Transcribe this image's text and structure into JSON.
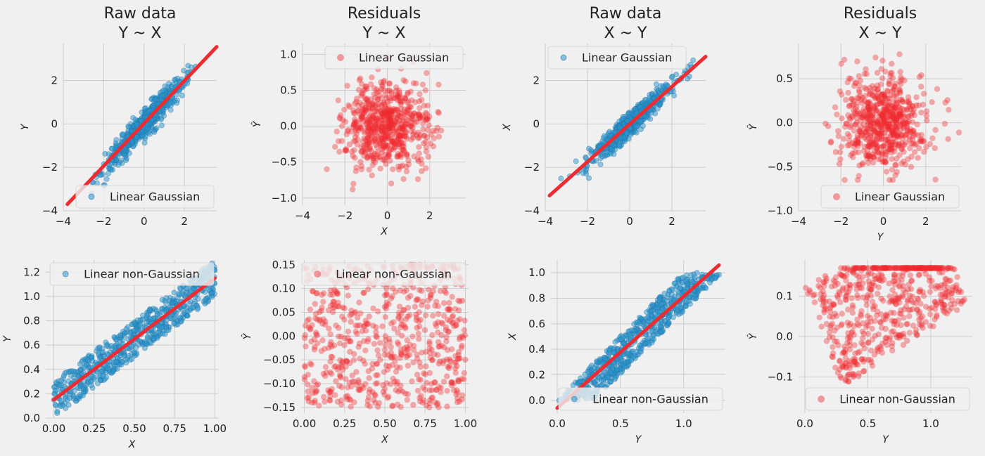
{
  "colors": {
    "blue": "#2a95d0",
    "red": "#ee2b30",
    "background": "#f0f0f0",
    "grid": "#cbcbcb"
  },
  "chart_data": [
    {
      "type": "scatter",
      "title": "Raw data\nY ~ X",
      "xlabel": "",
      "ylabel": "Y",
      "xlim": [
        -4,
        3.6
      ],
      "ylim": [
        -4,
        3.7
      ],
      "xticks": [
        -4,
        -2,
        0,
        2
      ],
      "xtick_labels": [
        "−4",
        "−2",
        "0",
        "2"
      ],
      "yticks": [
        -4,
        -2,
        0,
        2
      ],
      "ytick_labels": [
        "−4",
        "−2",
        "0",
        "2"
      ],
      "grid": true,
      "legend_position": "lower-right",
      "series": [
        {
          "name": "Linear Gaussian",
          "kind": "points",
          "color": "#2a95d0",
          "distribution": {
            "x": "normal",
            "count": 650,
            "slope": 1.0,
            "intercept": 0.0,
            "noise_sd": 0.3,
            "x_range": [
              -3.8,
              3.5
            ]
          }
        },
        {
          "kind": "fit-line",
          "color": "#ee2b30",
          "x": [
            -3.8,
            3.6
          ],
          "y": [
            -3.7,
            3.55
          ]
        }
      ]
    },
    {
      "type": "scatter",
      "title": "Residuals\nY ~ X",
      "xlabel": "X",
      "ylabel": "Ŷ",
      "xlim": [
        -4,
        3.7
      ],
      "ylim": [
        -1.1,
        1.15
      ],
      "xticks": [
        -4,
        -2,
        0,
        2
      ],
      "xtick_labels": [
        "−4",
        "−2",
        "0",
        "2"
      ],
      "yticks": [
        -1.0,
        -0.5,
        0.0,
        0.5,
        1.0
      ],
      "ytick_labels": [
        "−1.0",
        "−0.5",
        "0.0",
        "0.5",
        "1.0"
      ],
      "grid": true,
      "legend_position": "top-right",
      "series": [
        {
          "name": "Linear Gaussian",
          "kind": "points",
          "color": "#ee2b30",
          "distribution": {
            "x": "normal",
            "y": "normal",
            "count": 650,
            "x_sd": 1.0,
            "y_sd": 0.3,
            "x_range": [
              -3.8,
              3.6
            ],
            "y_range": [
              -1.0,
              1.0
            ]
          }
        }
      ]
    },
    {
      "type": "scatter",
      "title": "Raw data\nX ~ Y",
      "xlabel": "",
      "ylabel": "X",
      "xlim": [
        -4,
        3.6
      ],
      "ylim": [
        -4,
        3.7
      ],
      "xticks": [
        -4,
        -2,
        0,
        2
      ],
      "xtick_labels": [
        "−4",
        "−2",
        "0",
        "2"
      ],
      "yticks": [
        -4,
        -2,
        0,
        2
      ],
      "ytick_labels": [
        "−4",
        "−2",
        "0",
        "2"
      ],
      "grid": true,
      "legend_position": "top-left",
      "series": [
        {
          "name": "Linear Gaussian",
          "kind": "points",
          "color": "#2a95d0",
          "distribution": {
            "x": "normal",
            "count": 650,
            "slope": 1.0,
            "intercept": 0.0,
            "noise_sd": 0.3,
            "x_range": [
              -3.8,
              3.5
            ]
          }
        },
        {
          "kind": "fit-line",
          "color": "#ee2b30",
          "x": [
            -3.8,
            3.6
          ],
          "y": [
            -3.3,
            3.1
          ]
        }
      ]
    },
    {
      "type": "scatter",
      "title": "Residuals\nX ~ Y",
      "xlabel": "Y",
      "ylabel": "Ŷ",
      "xlim": [
        -4,
        3.7
      ],
      "ylim": [
        -1.0,
        0.9
      ],
      "xticks": [
        -4,
        -2,
        0,
        2
      ],
      "xtick_labels": [
        "−4",
        "−2",
        "0",
        "2"
      ],
      "yticks": [
        -1.0,
        -0.5,
        0.0,
        0.5
      ],
      "ytick_labels": [
        "−1.0",
        "−0.5",
        "0.0",
        "0.5"
      ],
      "grid": true,
      "legend_position": "lower-right",
      "series": [
        {
          "name": "Linear Gaussian",
          "kind": "points",
          "color": "#ee2b30",
          "distribution": {
            "x": "normal",
            "y": "normal",
            "count": 650,
            "x_sd": 1.0,
            "y_sd": 0.27,
            "x_range": [
              -3.8,
              3.6
            ],
            "y_range": [
              -0.65,
              0.85
            ]
          }
        }
      ]
    },
    {
      "type": "scatter",
      "title": "",
      "xlabel": "X",
      "ylabel": "Y",
      "xlim": [
        -0.05,
        1.02
      ],
      "ylim": [
        0.0,
        1.3
      ],
      "xticks": [
        0.0,
        0.25,
        0.5,
        0.75,
        1.0
      ],
      "xtick_labels": [
        "0.00",
        "0.25",
        "0.50",
        "0.75",
        "1.00"
      ],
      "yticks": [
        0.0,
        0.2,
        0.4,
        0.6,
        0.8,
        1.0,
        1.2
      ],
      "ytick_labels": [
        "0.0",
        "0.2",
        "0.4",
        "0.6",
        "0.8",
        "1.0",
        "1.2"
      ],
      "grid": true,
      "legend_position": "top-center",
      "series": [
        {
          "name": "Linear non-Gaussian",
          "kind": "points",
          "color": "#2a95d0",
          "distribution": {
            "x": "uniform",
            "count": 650,
            "slope": 1.0,
            "intercept": 0.15,
            "noise": "uniform",
            "noise_halfwidth": 0.15,
            "x_range": [
              0.0,
              1.0
            ]
          }
        },
        {
          "kind": "fit-line",
          "color": "#ee2b30",
          "x": [
            0.0,
            1.0
          ],
          "y": [
            0.15,
            1.15
          ]
        }
      ]
    },
    {
      "type": "scatter",
      "title": "",
      "xlabel": "X",
      "ylabel": "Ŷ",
      "xlim": [
        -0.02,
        1.02
      ],
      "ylim": [
        -0.162,
        0.16
      ],
      "xticks": [
        0.0,
        0.25,
        0.5,
        0.75,
        1.0
      ],
      "xtick_labels": [
        "0.00",
        "0.25",
        "0.50",
        "0.75",
        "1.00"
      ],
      "yticks": [
        -0.15,
        -0.1,
        -0.05,
        0.0,
        0.05,
        0.1,
        0.15
      ],
      "ytick_labels": [
        "−0.15",
        "−0.10",
        "−0.05",
        "0.00",
        "0.05",
        "0.10",
        "0.15"
      ],
      "grid": true,
      "legend_position": "top-right",
      "series": [
        {
          "name": "Linear non-Gaussian",
          "kind": "points",
          "color": "#ee2b30",
          "distribution": {
            "x": "uniform",
            "y": "uniform",
            "count": 650,
            "x_range": [
              0.0,
              1.0
            ],
            "y_range": [
              -0.15,
              0.15
            ]
          }
        }
      ]
    },
    {
      "type": "scatter",
      "title": "",
      "xlabel": "Y",
      "ylabel": "X",
      "xlim": [
        -0.05,
        1.33
      ],
      "ylim": [
        -0.1,
        1.1
      ],
      "xticks": [
        0.0,
        0.5,
        1.0
      ],
      "xtick_labels": [
        "0.0",
        "0.5",
        "1.0"
      ],
      "yticks": [
        0.0,
        0.2,
        0.4,
        0.6,
        0.8,
        1.0
      ],
      "ytick_labels": [
        "0.0",
        "0.2",
        "0.4",
        "0.6",
        "0.8",
        "1.0"
      ],
      "grid": true,
      "legend_position": "lower-right",
      "series": [
        {
          "name": "Linear non-Gaussian",
          "kind": "points",
          "color": "#2a95d0",
          "distribution": {
            "y": "uniform",
            "count": 650,
            "slope": 1.0,
            "intercept": 0.15,
            "noise": "uniform",
            "noise_halfwidth": 0.15,
            "y_range": [
              0.0,
              1.0
            ]
          }
        },
        {
          "kind": "fit-line",
          "color": "#ee2b30",
          "x": [
            0.0,
            1.28
          ],
          "y": [
            -0.06,
            1.06
          ]
        }
      ]
    },
    {
      "type": "scatter",
      "title": "",
      "xlabel": "Y",
      "ylabel": "Ŷ",
      "xlim": [
        -0.05,
        1.33
      ],
      "ylim": [
        -0.19,
        0.19
      ],
      "xticks": [
        0.0,
        0.5,
        1.0
      ],
      "xtick_labels": [
        "0.0",
        "0.5",
        "1.0"
      ],
      "yticks": [
        -0.1,
        0.0,
        0.1
      ],
      "ytick_labels": [
        "−0.1",
        "0.0",
        "0.1"
      ],
      "grid": true,
      "legend_position": "lower-right",
      "series": [
        {
          "name": "Linear non-Gaussian",
          "kind": "points",
          "color": "#ee2b30",
          "distribution": {
            "x": "uniform",
            "count": 650,
            "x_range": [
              0.03,
              1.3
            ],
            "y_range": [
              -0.17,
              0.17
            ]
          }
        }
      ]
    }
  ]
}
